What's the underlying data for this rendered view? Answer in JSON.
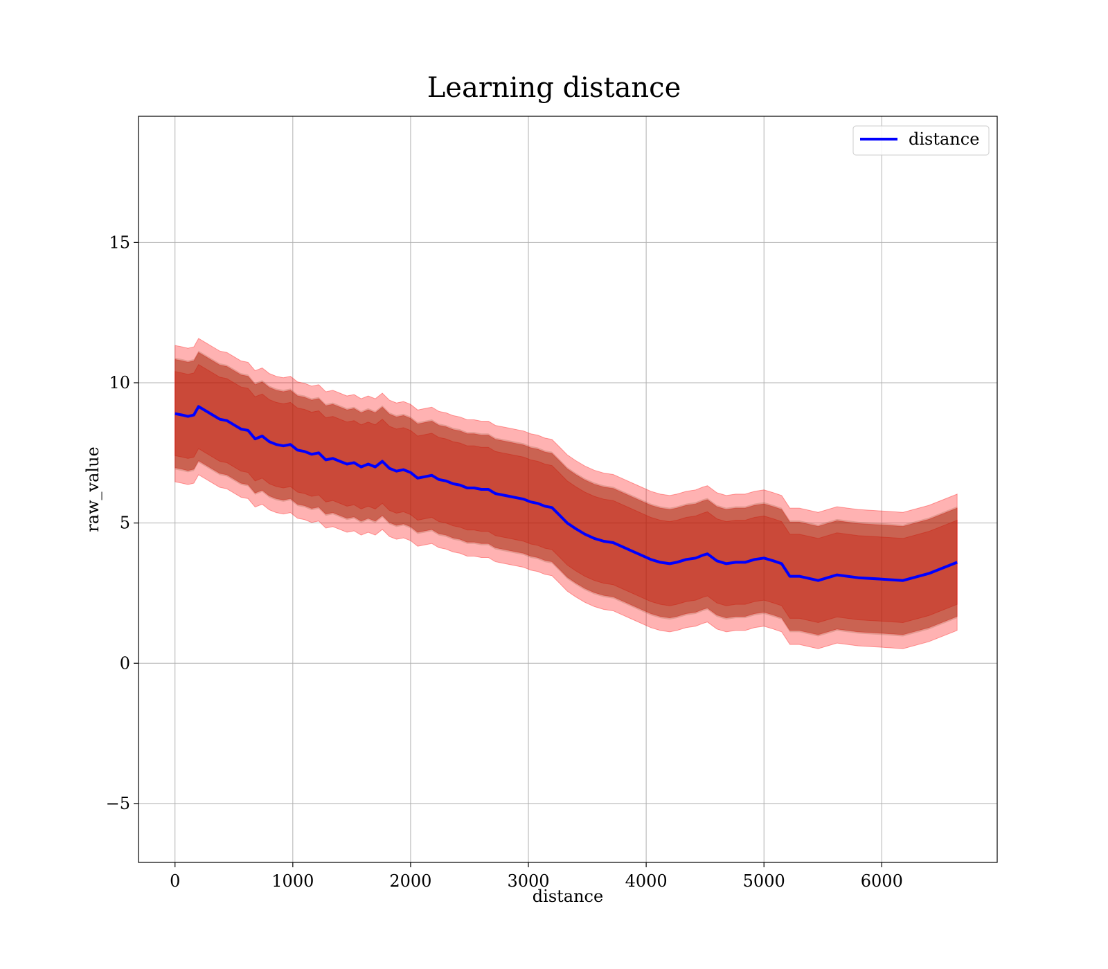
{
  "chart_data": {
    "type": "line",
    "title": "Learning distance",
    "xlabel": "distance",
    "ylabel": "raw_value",
    "xlim": [
      -310,
      6980
    ],
    "ylim": [
      -7.1,
      19.5
    ],
    "xticks": [
      0,
      1000,
      2000,
      3000,
      4000,
      5000,
      6000
    ],
    "xtick_labels": [
      "0",
      "1000",
      "2000",
      "3000",
      "4000",
      "5000",
      "6000"
    ],
    "yticks": [
      -5,
      0,
      5,
      10,
      15
    ],
    "ytick_labels": [
      "−5",
      "0",
      "5",
      "10",
      "15"
    ],
    "grid": true,
    "legend": {
      "position": "top-right",
      "entries": [
        "distance"
      ]
    },
    "colors": {
      "line": "#0000ff",
      "band": "#ff0000",
      "inner_band": "#5e3300"
    },
    "series": [
      {
        "name": "distance",
        "x": [
          0,
          60,
          110,
          160,
          200,
          260,
          320,
          380,
          440,
          500,
          560,
          620,
          680,
          740,
          800,
          860,
          920,
          980,
          1040,
          1100,
          1160,
          1220,
          1280,
          1340,
          1400,
          1460,
          1520,
          1580,
          1640,
          1700,
          1760,
          1820,
          1880,
          1940,
          2000,
          2060,
          2120,
          2180,
          2240,
          2300,
          2360,
          2420,
          2480,
          2540,
          2600,
          2660,
          2720,
          2780,
          2840,
          2900,
          2960,
          3020,
          3080,
          3140,
          3200,
          3260,
          3330,
          3400,
          3480,
          3560,
          3640,
          3720,
          3800,
          3880,
          3960,
          4040,
          4120,
          4200,
          4260,
          4340,
          4420,
          4480,
          4520,
          4600,
          4680,
          4760,
          4840,
          4920,
          5000,
          5080,
          5150,
          5220,
          5300,
          5460,
          5620,
          5800,
          6000,
          6180,
          6400,
          6640
        ],
        "values": [
          8.9,
          8.85,
          8.8,
          8.85,
          9.15,
          9.0,
          8.85,
          8.7,
          8.65,
          8.5,
          8.35,
          8.3,
          8.0,
          8.1,
          7.9,
          7.8,
          7.75,
          7.8,
          7.6,
          7.55,
          7.45,
          7.5,
          7.25,
          7.3,
          7.2,
          7.1,
          7.15,
          7.0,
          7.1,
          7.0,
          7.2,
          6.95,
          6.85,
          6.9,
          6.8,
          6.6,
          6.65,
          6.7,
          6.55,
          6.5,
          6.4,
          6.35,
          6.25,
          6.25,
          6.2,
          6.2,
          6.05,
          6.0,
          5.95,
          5.9,
          5.85,
          5.75,
          5.7,
          5.6,
          5.55,
          5.3,
          5.0,
          4.8,
          4.6,
          4.45,
          4.35,
          4.3,
          4.15,
          4.0,
          3.85,
          3.7,
          3.6,
          3.55,
          3.6,
          3.7,
          3.75,
          3.85,
          3.9,
          3.65,
          3.55,
          3.6,
          3.6,
          3.7,
          3.75,
          3.65,
          3.55,
          3.1,
          3.1,
          2.95,
          3.15,
          3.05,
          3.0,
          2.95,
          3.2,
          3.6
        ],
        "band_half_widths": [
          1.5,
          1.93,
          2.43
        ]
      }
    ]
  }
}
